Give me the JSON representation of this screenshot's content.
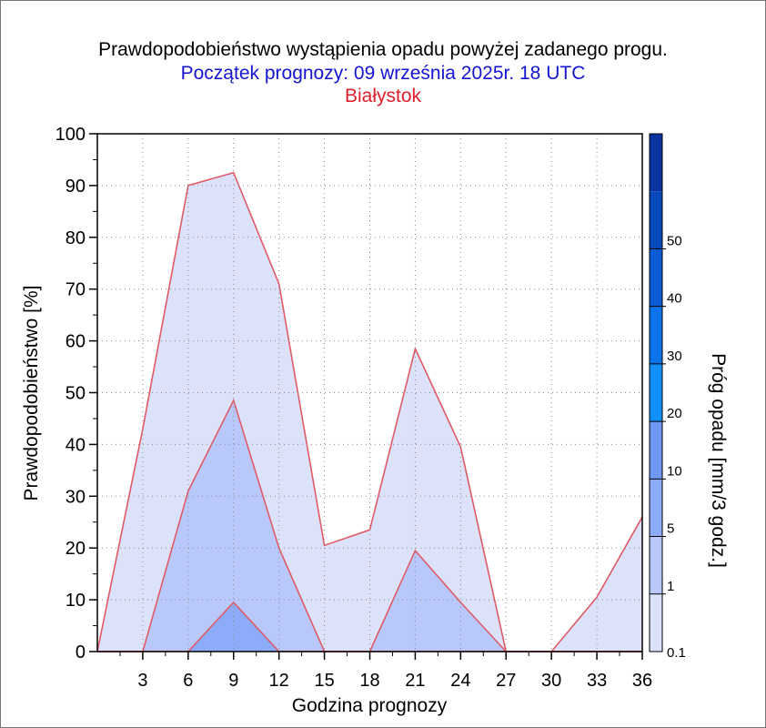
{
  "titles": {
    "line1": "Prawdopodobieństwo wystąpienia opadu powyżej zadanego progu.",
    "line2": "Początek prognozy: 09 września 2025r. 18 UTC",
    "line3": "Białystok"
  },
  "colors": {
    "title": "#000000",
    "subtitle": "#1414d2",
    "location": "#e0202a",
    "series_line": "#e05a66",
    "grid": "#8c8c8c"
  },
  "chart_data": {
    "type": "area",
    "xlabel": "Godzina prognozy",
    "ylabel": "Prawdopodobieństwo [%]",
    "x": [
      0,
      3,
      6,
      9,
      12,
      15,
      18,
      21,
      24,
      27,
      30,
      33,
      36
    ],
    "x_tick_labels": [
      "3",
      "6",
      "9",
      "12",
      "15",
      "18",
      "21",
      "24",
      "27",
      "30",
      "33",
      "36"
    ],
    "xlim": [
      0,
      36
    ],
    "ylim": [
      0,
      100
    ],
    "y_ticks": [
      0,
      10,
      20,
      30,
      40,
      50,
      60,
      70,
      80,
      90,
      100
    ],
    "grid": true,
    "series": [
      {
        "threshold": "0.1",
        "color": "#dde2fb",
        "values": [
          0,
          43,
          90,
          92.5,
          71,
          20.5,
          23.5,
          58.5,
          39.5,
          0,
          0,
          10.5,
          26
        ]
      },
      {
        "threshold": "1",
        "color": "#b8c8fb",
        "values": [
          0,
          0,
          31,
          48.5,
          20,
          0,
          0,
          19.5,
          9.5,
          0,
          0,
          0,
          0
        ]
      },
      {
        "threshold": "5",
        "color": "#8cacfa",
        "values": [
          0,
          0,
          0,
          9.5,
          0,
          0,
          0,
          0,
          0,
          0,
          0,
          0,
          0
        ]
      }
    ],
    "colorbar": {
      "title": "Próg opadu [mm/3 godz.]",
      "labels": [
        "0.1",
        "1",
        "5",
        "10",
        "20",
        "30",
        "40",
        "50"
      ],
      "colors": [
        "#dde2fb",
        "#b8c8fb",
        "#8cacfa",
        "#6f97f4",
        "#118ffa",
        "#0c74ea",
        "#0a5cd4",
        "#0848bd",
        "#0a35a0"
      ]
    }
  }
}
